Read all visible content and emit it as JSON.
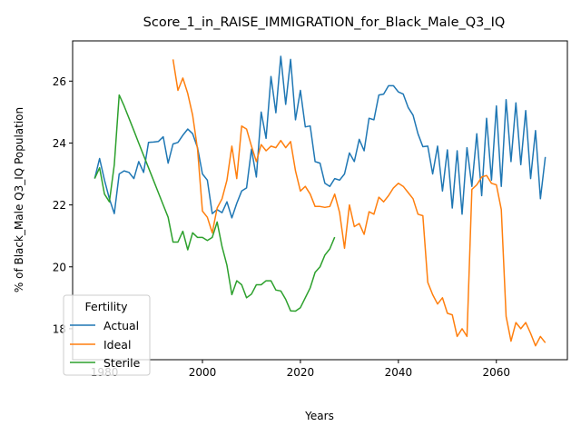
{
  "chart_data": {
    "type": "line",
    "title": "Score_1_in_RAISE_IMMIGRATION_for_Black_Male_Q3_IQ",
    "xlabel": "Years",
    "ylabel": "% of Black_Male Q3_IQ Population",
    "xlim": [
      1973.5,
      2074.5
    ],
    "ylim": [
      17.0,
      27.3
    ],
    "x_ticks": [
      1980,
      2000,
      2020,
      2040,
      2060
    ],
    "y_ticks": [
      18,
      20,
      22,
      24,
      26
    ],
    "grid": false,
    "legend": {
      "title": "Fertility",
      "placement": "lower-left"
    },
    "series": [
      {
        "name": "Actual",
        "color": "#1f77b4",
        "x": [
          1978,
          1979,
          1980,
          1981,
          1982,
          1983,
          1984,
          1985,
          1986,
          1987,
          1988,
          1989,
          1990,
          1991,
          1992,
          1993,
          1994,
          1995,
          1996,
          1997,
          1998,
          1999,
          2000,
          2001,
          2002,
          2003,
          2004,
          2005,
          2006,
          2007,
          2008,
          2009,
          2010,
          2011,
          2012,
          2013,
          2014,
          2015,
          2016,
          2017,
          2018,
          2019,
          2020,
          2021,
          2022,
          2023,
          2024,
          2025,
          2026,
          2027,
          2028,
          2029,
          2030,
          2031,
          2032,
          2033,
          2034,
          2035,
          2036,
          2037,
          2038,
          2039,
          2040,
          2041,
          2042,
          2043,
          2044,
          2045,
          2046,
          2047,
          2048,
          2049,
          2050,
          2051,
          2052,
          2053,
          2054,
          2055,
          2056,
          2057,
          2058,
          2059,
          2060,
          2061,
          2062,
          2063,
          2064,
          2065,
          2066,
          2067,
          2068,
          2069,
          2070
        ],
        "values": [
          22.85,
          23.5,
          22.8,
          22.2,
          21.72,
          23.0,
          23.1,
          23.05,
          22.85,
          23.4,
          23.05,
          24.02,
          24.03,
          24.05,
          24.2,
          23.35,
          23.97,
          24.02,
          24.25,
          24.45,
          24.3,
          23.85,
          23.0,
          22.8,
          21.72,
          21.85,
          21.75,
          22.1,
          21.58,
          22.05,
          22.45,
          22.55,
          23.8,
          22.9,
          25.0,
          24.15,
          26.15,
          24.98,
          26.8,
          25.25,
          26.7,
          24.75,
          25.7,
          24.52,
          24.55,
          23.4,
          23.35,
          22.7,
          22.6,
          22.85,
          22.8,
          23.0,
          23.68,
          23.4,
          24.12,
          23.75,
          24.8,
          24.75,
          25.55,
          25.58,
          25.85,
          25.85,
          25.65,
          25.58,
          25.15,
          24.9,
          24.3,
          23.88,
          23.9,
          23.0,
          23.9,
          22.45,
          23.78,
          21.9,
          23.75,
          21.7,
          23.85,
          22.6,
          24.3,
          22.3,
          24.8,
          22.8,
          25.2,
          22.6,
          25.4,
          23.4,
          25.3,
          23.3,
          25.05,
          22.85,
          24.4,
          22.2,
          23.55
        ]
      },
      {
        "name": "Ideal",
        "color": "#ff7f0e",
        "x": [
          1994,
          1995,
          1996,
          1997,
          1998,
          1999,
          2000,
          2001,
          2002,
          2003,
          2004,
          2005,
          2006,
          2007,
          2008,
          2009,
          2010,
          2011,
          2012,
          2013,
          2014,
          2015,
          2016,
          2017,
          2018,
          2019,
          2020,
          2021,
          2022,
          2023,
          2024,
          2025,
          2026,
          2027,
          2028,
          2029,
          2030,
          2031,
          2032,
          2033,
          2034,
          2035,
          2036,
          2037,
          2038,
          2039,
          2040,
          2041,
          2042,
          2043,
          2044,
          2045,
          2046,
          2047,
          2048,
          2049,
          2050,
          2051,
          2052,
          2053,
          2054,
          2055,
          2056,
          2057,
          2058,
          2059,
          2060,
          2061,
          2062,
          2063,
          2064,
          2065,
          2066,
          2067,
          2068,
          2069,
          2070
        ],
        "values": [
          26.7,
          25.7,
          26.1,
          25.6,
          24.9,
          23.8,
          21.8,
          21.6,
          21.1,
          21.9,
          22.2,
          22.8,
          23.9,
          22.85,
          24.55,
          24.45,
          23.9,
          23.4,
          23.95,
          23.75,
          23.9,
          23.85,
          24.08,
          23.85,
          24.05,
          23.1,
          22.45,
          22.6,
          22.35,
          21.95,
          21.95,
          21.92,
          21.95,
          22.35,
          21.75,
          20.6,
          22.0,
          21.3,
          21.4,
          21.05,
          21.78,
          21.7,
          22.25,
          22.1,
          22.3,
          22.55,
          22.7,
          22.6,
          22.4,
          22.2,
          21.7,
          21.65,
          19.5,
          19.1,
          18.8,
          19.0,
          18.5,
          18.45,
          17.75,
          18.0,
          17.75,
          22.5,
          22.65,
          22.9,
          22.95,
          22.7,
          22.65,
          21.85,
          18.4,
          17.6,
          18.2,
          18.0,
          18.2,
          17.85,
          17.45,
          17.75,
          17.55
        ]
      },
      {
        "name": "Sterile",
        "color": "#2ca02c",
        "x": [
          1978,
          1979,
          1980,
          1981,
          1982,
          1983,
          1984,
          1985,
          1986,
          1987,
          1988,
          1989,
          1990,
          1991,
          1992,
          1993,
          1994,
          1995,
          1996,
          1997,
          1998,
          1999,
          2000,
          2001,
          2002,
          2003,
          2004,
          2005,
          2006,
          2007,
          2008,
          2009,
          2010,
          2011,
          2012,
          2013,
          2014,
          2015,
          2016,
          2017,
          2018,
          2019,
          2020,
          2021,
          2022,
          2023,
          2024,
          2025,
          2026,
          2027
        ],
        "values": [
          22.85,
          23.2,
          22.35,
          22.1,
          23.3,
          25.55,
          25.2,
          24.8,
          24.4,
          24.0,
          23.6,
          23.2,
          22.8,
          22.4,
          22.0,
          21.6,
          20.8,
          20.8,
          21.15,
          20.55,
          21.1,
          20.95,
          20.95,
          20.85,
          20.95,
          21.45,
          20.65,
          20.05,
          19.1,
          19.55,
          19.42,
          19.0,
          19.12,
          19.42,
          19.42,
          19.55,
          19.55,
          19.25,
          19.22,
          18.95,
          18.58,
          18.57,
          18.68,
          19.0,
          19.32,
          19.82,
          20.0,
          20.38,
          20.58,
          20.96
        ]
      }
    ]
  }
}
